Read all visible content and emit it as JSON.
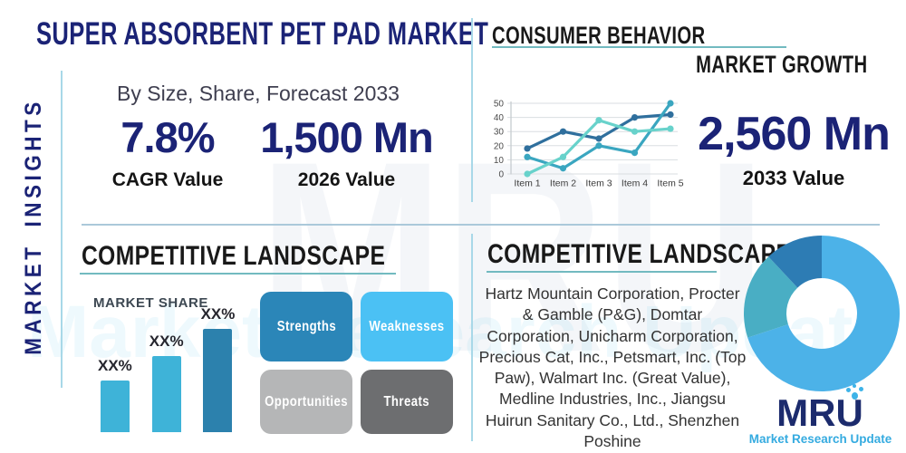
{
  "title": "SUPER ABSORBENT PET PAD MARKET",
  "side_label": "MARKET INSIGHTS",
  "insights": {
    "subtitle": "By Size, Share, Forecast 2033",
    "cagr_value": "7.8%",
    "cagr_label": "CAGR Value",
    "value_2026": "1,500 Mn",
    "label_2026": "2026 Value"
  },
  "consumer_behavior": {
    "heading": "CONSUMER BEHAVIOR"
  },
  "market_growth": {
    "heading": "MARKET GROWTH",
    "value_2033": "2,560 Mn",
    "label_2033": "2033 Value"
  },
  "competitive_left": {
    "heading": "COMPETITIVE LANDSCAPE",
    "market_share_label": "MARKET SHARE"
  },
  "competitive_right": {
    "heading": "COMPETITIVE LANDSCAPE",
    "companies": "Hartz Mountain Corporation, Procter & Gamble (P&G), Domtar Corporation, Unicharm Corporation, Precious Cat, Inc., Petsmart, Inc. (Top Paw), Walmart Inc. (Great Value), Medline Industries, Inc., Jiangsu Huirun Sanitary Co., Ltd., Shenzhen Poshine"
  },
  "swot": {
    "items": [
      {
        "label": "Strengths",
        "color": "#2b86b8"
      },
      {
        "label": "Weaknesses",
        "color": "#4bc1f4"
      },
      {
        "label": "Opportunities",
        "color": "#b5b6b7"
      },
      {
        "label": "Threats",
        "color": "#6d6e70"
      }
    ]
  },
  "logo": {
    "text": "MRU",
    "tagline": "Market Research Update"
  },
  "watermark": {
    "text": "MRU",
    "tagline": "Market Research Update"
  },
  "colors": {
    "navy": "#1b2376",
    "divider_blue": "#a8d8e8",
    "underline_teal": "#72bac0"
  },
  "chart_data": [
    {
      "type": "line",
      "name": "consumer-behavior-line-chart",
      "title": "CONSUMER BEHAVIOR",
      "x": [
        "Item 1",
        "Item 2",
        "Item 3",
        "Item 4",
        "Item 5"
      ],
      "series": [
        {
          "name": "dark-blue-series",
          "color": "#2f6f9d",
          "values": [
            18,
            30,
            25,
            40,
            42
          ]
        },
        {
          "name": "teal-series",
          "color": "#3aa6c0",
          "values": [
            12,
            4,
            20,
            15,
            50
          ]
        },
        {
          "name": "light-mint-series",
          "color": "#68d2cb",
          "values": [
            0,
            12,
            38,
            30,
            32
          ]
        }
      ],
      "ylim": [
        0,
        50
      ],
      "yticks": [
        0,
        10,
        20,
        30,
        40,
        50
      ],
      "grid": true,
      "legend": false
    },
    {
      "type": "bar",
      "name": "market-share-bar-chart",
      "title": "MARKET SHARE",
      "categories": [
        "",
        "",
        ""
      ],
      "values": [
        25,
        37,
        50
      ],
      "bar_labels": [
        "XX%",
        "XX%",
        "XX%"
      ],
      "colors": [
        "#3eb3d8",
        "#3eb3d8",
        "#2c81ad"
      ],
      "ylabel": "",
      "xlabel": ""
    },
    {
      "type": "pie",
      "name": "competitive-landscape-donut",
      "labels": [
        "segment-light-blue",
        "segment-teal",
        "segment-dark-blue"
      ],
      "values": [
        70,
        18,
        12
      ],
      "colors": [
        "#4cb2e8",
        "#49aec4",
        "#2d7cb4"
      ],
      "donut": true
    }
  ]
}
